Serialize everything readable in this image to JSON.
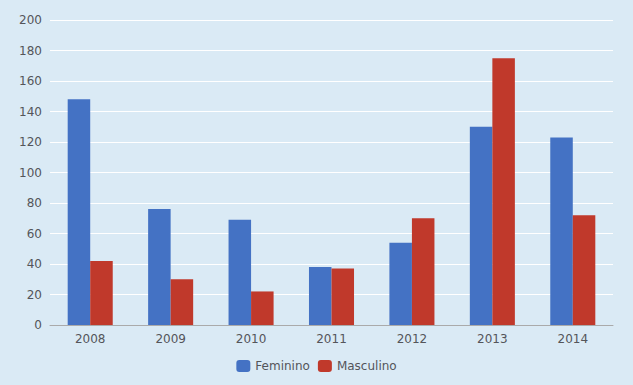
{
  "chart_data": {
    "type": "bar",
    "categories": [
      "2008",
      "2009",
      "2010",
      "2011",
      "2012",
      "2013",
      "2014"
    ],
    "series": [
      {
        "name": "Feminino",
        "color": "#4472C4",
        "values": [
          148,
          76,
          69,
          38,
          54,
          130,
          123
        ]
      },
      {
        "name": "Masculino",
        "color": "#C0392B",
        "values": [
          42,
          30,
          22,
          37,
          70,
          175,
          72
        ]
      }
    ],
    "ylim": [
      0,
      200
    ],
    "yticks": [
      0,
      20,
      40,
      60,
      80,
      100,
      120,
      140,
      160,
      180,
      200
    ],
    "grid": true,
    "legend": "bottom"
  }
}
